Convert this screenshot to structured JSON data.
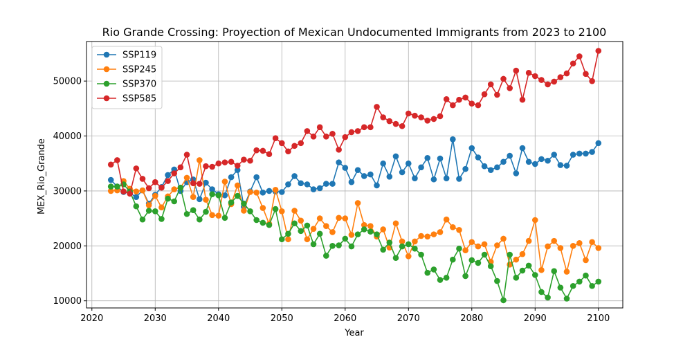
{
  "chart_data": {
    "type": "line",
    "title": "Rio Grande Crossing: Proyection of Mexican Undocumented Immigrants from 2023 to 2100",
    "xlabel": "Year",
    "ylabel": "MEX_Rio_Grande",
    "xlim": [
      2019.15,
      2103.85
    ],
    "ylim": [
      8700,
      57200
    ],
    "xticks": [
      2020,
      2030,
      2040,
      2050,
      2060,
      2070,
      2080,
      2090,
      2100
    ],
    "yticks": [
      10000,
      20000,
      30000,
      40000,
      50000
    ],
    "grid": true,
    "legend_position": "top-left",
    "x_start": 2023,
    "series": [
      {
        "name": "SSP119",
        "color": "#1f77b4",
        "values": [
          32000,
          30800,
          29800,
          29600,
          28900,
          30100,
          27700,
          29300,
          30700,
          32900,
          33900,
          30000,
          31600,
          32100,
          28500,
          31500,
          30300,
          29400,
          29200,
          32500,
          33800,
          27100,
          29900,
          32500,
          29700,
          30000,
          29900,
          29800,
          31200,
          32700,
          31400,
          31200,
          30300,
          30500,
          31300,
          31300,
          35200,
          34200,
          31600,
          33800,
          32700,
          33000,
          31000,
          35000,
          32600,
          36300,
          33400,
          35000,
          32300,
          34300,
          36000,
          32100,
          35900,
          32300,
          39400,
          32200,
          34000,
          37800,
          36100,
          34500,
          33800,
          34300,
          35300,
          36400,
          33200,
          37800,
          35300,
          34900,
          35800,
          35500,
          36600,
          34700,
          34600,
          36600,
          36800,
          36800,
          37100,
          38700
        ]
      },
      {
        "name": "SSP245",
        "color": "#ff7f0e",
        "values": [
          30000,
          30100,
          31800,
          30400,
          29900,
          30100,
          27400,
          29100,
          27000,
          29000,
          30300,
          30600,
          32400,
          28900,
          35600,
          28400,
          25600,
          25500,
          31700,
          27600,
          31000,
          26400,
          29800,
          29700,
          26900,
          24000,
          30200,
          26300,
          21200,
          26400,
          24600,
          21200,
          23100,
          25000,
          23600,
          22500,
          25100,
          25000,
          22000,
          27800,
          23800,
          23600,
          21700,
          23000,
          19700,
          24100,
          20800,
          18100,
          20800,
          21800,
          21700,
          22100,
          22500,
          24800,
          23400,
          22900,
          19200,
          20700,
          19900,
          20300,
          17100,
          20100,
          21300,
          16600,
          17500,
          18500,
          20900,
          24700,
          15600,
          19900,
          20900,
          19600,
          15300,
          20000,
          20500,
          17400,
          20700,
          19600
        ]
      },
      {
        "name": "SSP370",
        "color": "#2ca02c",
        "values": [
          30800,
          30800,
          31200,
          29900,
          27200,
          24800,
          26400,
          26300,
          24900,
          28600,
          28100,
          30600,
          25800,
          26500,
          24800,
          26200,
          29400,
          29200,
          25100,
          27900,
          29100,
          27700,
          26300,
          24700,
          24200,
          23800,
          26700,
          21200,
          22200,
          24100,
          22700,
          23700,
          20300,
          22200,
          18200,
          20000,
          20100,
          21300,
          19900,
          22100,
          23000,
          22600,
          22100,
          19300,
          20600,
          17800,
          19900,
          20300,
          19500,
          18400,
          15100,
          15700,
          13800,
          14200,
          17500,
          19500,
          14500,
          17400,
          16900,
          18400,
          16300,
          13600,
          10100,
          18400,
          14200,
          15500,
          16400,
          14700,
          11600,
          10600,
          15400,
          12400,
          10400,
          12700,
          13500,
          14600,
          12700,
          13500
        ]
      },
      {
        "name": "SSP585",
        "color": "#d62728",
        "values": [
          34800,
          35600,
          29900,
          29500,
          34100,
          32200,
          30500,
          31600,
          30600,
          31800,
          33200,
          34300,
          36600,
          31400,
          31300,
          34500,
          34400,
          35000,
          35200,
          35300,
          34600,
          35700,
          35500,
          37400,
          37300,
          36700,
          39600,
          38700,
          37200,
          38200,
          38700,
          40900,
          39900,
          41600,
          39900,
          40400,
          37500,
          39800,
          40700,
          40900,
          41600,
          41600,
          45300,
          43400,
          42700,
          42200,
          41800,
          44100,
          43700,
          43400,
          42800,
          43100,
          43600,
          46700,
          45600,
          46600,
          47000,
          45900,
          45600,
          47600,
          49400,
          47500,
          50400,
          48700,
          51900,
          46600,
          51500,
          50900,
          50200,
          49400,
          49900,
          50700,
          51400,
          53200,
          54500,
          51300,
          50000,
          55500
        ]
      }
    ]
  }
}
